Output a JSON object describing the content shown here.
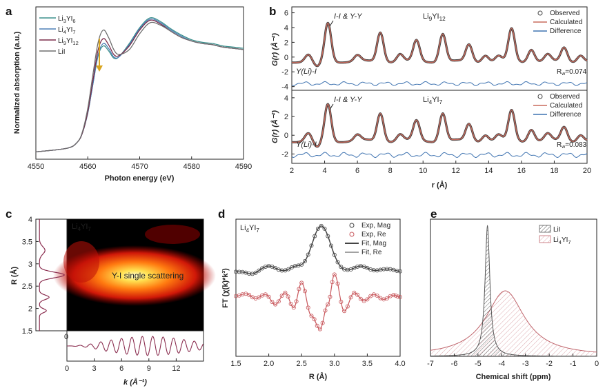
{
  "panel_letters": [
    "a",
    "b",
    "c",
    "d",
    "e"
  ],
  "chart_data": [
    {
      "panel": "a",
      "type": "line",
      "xlabel": "Photon energy (eV)",
      "ylabel": "Normalized absorption (a.u.)",
      "xlim": [
        4550,
        4590
      ],
      "xticks": [
        "4550",
        "4560",
        "4570",
        "4580",
        "4590"
      ],
      "series": [
        {
          "name": "Li3YI6",
          "label_main": "Li",
          "label_parts": [
            "3",
            "YI",
            "6"
          ],
          "color": "#3a8f8c",
          "points": [
            [
              4550,
              0.06
            ],
            [
              4556,
              0.09
            ],
            [
              4558,
              0.14
            ],
            [
              4559,
              0.22
            ],
            [
              4560,
              0.38
            ],
            [
              4561,
              0.62
            ],
            [
              4562,
              0.85
            ],
            [
              4563,
              0.93
            ],
            [
              4564,
              0.89
            ],
            [
              4565,
              0.83
            ],
            [
              4566,
              0.84
            ],
            [
              4568,
              0.95
            ],
            [
              4570,
              1.08
            ],
            [
              4572,
              1.16
            ],
            [
              4574,
              1.13
            ],
            [
              4576,
              1.07
            ],
            [
              4578,
              1.02
            ],
            [
              4580,
              0.98
            ],
            [
              4582,
              0.96
            ],
            [
              4584,
              0.95
            ],
            [
              4586,
              0.93
            ],
            [
              4588,
              0.92
            ],
            [
              4590,
              0.91
            ]
          ]
        },
        {
          "name": "Li4YI7",
          "label_main": "Li",
          "label_parts": [
            "4",
            "YI",
            "7"
          ],
          "color": "#4b7fb5",
          "points": [
            [
              4550,
              0.06
            ],
            [
              4556,
              0.09
            ],
            [
              4558,
              0.14
            ],
            [
              4559,
              0.22
            ],
            [
              4560,
              0.38
            ],
            [
              4561,
              0.62
            ],
            [
              4562,
              0.86
            ],
            [
              4563,
              0.95
            ],
            [
              4564,
              0.91
            ],
            [
              4565,
              0.84
            ],
            [
              4566,
              0.84
            ],
            [
              4568,
              0.94
            ],
            [
              4570,
              1.07
            ],
            [
              4572,
              1.15
            ],
            [
              4574,
              1.12
            ],
            [
              4576,
              1.06
            ],
            [
              4578,
              1.01
            ],
            [
              4580,
              0.97
            ],
            [
              4582,
              0.95
            ],
            [
              4584,
              0.94
            ],
            [
              4586,
              0.92
            ],
            [
              4588,
              0.91
            ],
            [
              4590,
              0.9
            ]
          ]
        },
        {
          "name": "Li9YI12",
          "label_main": "Li",
          "label_parts": [
            "9",
            "YI",
            "12"
          ],
          "color": "#7a2b49",
          "points": [
            [
              4550,
              0.06
            ],
            [
              4556,
              0.09
            ],
            [
              4558,
              0.14
            ],
            [
              4559,
              0.22
            ],
            [
              4560,
              0.39
            ],
            [
              4561,
              0.65
            ],
            [
              4562,
              0.9
            ],
            [
              4563,
              0.99
            ],
            [
              4564,
              0.94
            ],
            [
              4565,
              0.86
            ],
            [
              4566,
              0.85
            ],
            [
              4568,
              0.93
            ],
            [
              4570,
              1.06
            ],
            [
              4572,
              1.14
            ],
            [
              4574,
              1.11
            ],
            [
              4576,
              1.05
            ],
            [
              4578,
              1.0
            ],
            [
              4580,
              0.97
            ],
            [
              4582,
              0.95
            ],
            [
              4584,
              0.94
            ],
            [
              4586,
              0.92
            ],
            [
              4588,
              0.91
            ],
            [
              4590,
              0.9
            ]
          ]
        },
        {
          "name": "LiI",
          "label_main": "LiI",
          "label_parts": [],
          "color": "#6e6e6e",
          "points": [
            [
              4550,
              0.06
            ],
            [
              4556,
              0.09
            ],
            [
              4558,
              0.14
            ],
            [
              4559,
              0.23
            ],
            [
              4560,
              0.42
            ],
            [
              4561,
              0.7
            ],
            [
              4562,
              0.96
            ],
            [
              4563,
              1.06
            ],
            [
              4564,
              1.0
            ],
            [
              4565,
              0.9
            ],
            [
              4566,
              0.86
            ],
            [
              4568,
              0.9
            ],
            [
              4570,
              1.03
            ],
            [
              4572,
              1.12
            ],
            [
              4574,
              1.1
            ],
            [
              4576,
              1.05
            ],
            [
              4578,
              1.0
            ],
            [
              4580,
              0.97
            ],
            [
              4582,
              0.95
            ],
            [
              4584,
              0.94
            ],
            [
              4586,
              0.92
            ],
            [
              4588,
              0.91
            ],
            [
              4590,
              0.9
            ]
          ]
        }
      ],
      "arrow_color": "#d9a520"
    },
    {
      "panel": "b",
      "type": "line",
      "xlabel": "r (Å)",
      "xlim": [
        2,
        20
      ],
      "xticks": [
        "2",
        "4",
        "6",
        "8",
        "10",
        "12",
        "14",
        "16",
        "18",
        "20"
      ],
      "legend": [
        "Observed",
        "Calculated",
        "Difference"
      ],
      "colors": {
        "observed": "#444444",
        "calculated": "#c96a5c",
        "difference": "#3d72b0"
      },
      "peaks_r": [
        3.0,
        4.2,
        6.0,
        7.4,
        8.6,
        9.6,
        11.2,
        12.8,
        13.8,
        14.6,
        15.4,
        16.6,
        17.6,
        18.6,
        19.6
      ],
      "subplots": [
        {
          "compound_main": "Li",
          "compound_parts": [
            "9",
            "YI",
            "12"
          ],
          "rw": "R",
          "rw_sub": "w",
          "rw_value": "=0.074",
          "ylabel": "G(r) (Å⁻²)",
          "yticks": [
            "-4",
            "-2",
            "0",
            "2",
            "4",
            "6"
          ],
          "ylim": [
            -4.5,
            6.8
          ],
          "annotation_peak": "I-I & Y-Y",
          "annotation_low": "Y(Li)-I",
          "peaks_g": [
            0.9,
            5.2,
            0.8,
            4.0,
            1.0,
            2.8,
            3.8,
            2.3,
            0.9,
            0.7,
            4.4,
            1.7,
            0.9,
            1.9,
            0.9
          ]
        },
        {
          "compound_main": "Li",
          "compound_parts": [
            "4",
            "YI",
            "7"
          ],
          "rw": "R",
          "rw_sub": "w",
          "rw_value": "=0.083",
          "ylabel": "G(r) (Å⁻²)",
          "yticks": [
            "-2",
            "0",
            "2",
            "4"
          ],
          "ylim": [
            -3.0,
            4.8
          ],
          "annotation_peak": "I-I & Y-Y",
          "annotation_low": "Y(Li)-I",
          "peaks_g": [
            0.8,
            3.9,
            0.6,
            3.0,
            0.7,
            2.1,
            3.0,
            1.8,
            0.7,
            0.6,
            3.2,
            1.3,
            0.7,
            1.5,
            0.7
          ]
        }
      ]
    },
    {
      "panel": "c",
      "type": "heatmap",
      "title_main": "Li",
      "title_parts": [
        "4",
        "YI",
        "7"
      ],
      "annotation": "Y-I single scattering",
      "ylabel": "R (Å)",
      "yticks": [
        "1.5",
        "2",
        "2.5",
        "3",
        "3.5",
        "4"
      ],
      "ylim": [
        1.5,
        4
      ],
      "xlabel": "k (Å⁻¹)",
      "xticks": [
        "0",
        "3",
        "6",
        "9",
        "12"
      ],
      "xlim": [
        0,
        15
      ],
      "hotspot": {
        "k": 8.5,
        "R": 2.75
      },
      "side_profile_xticks": [
        "0"
      ],
      "curve_color": "#8a2d4f"
    },
    {
      "panel": "d",
      "type": "line",
      "title_main": "Li",
      "title_parts": [
        "4",
        "YI",
        "7"
      ],
      "xlabel": "R (Å)",
      "ylabel": "FT (χ(k)*k³)",
      "xlim": [
        1.5,
        4.0
      ],
      "xticks": [
        "1.5",
        "2.0",
        "2.5",
        "3.0",
        "3.5",
        "4.0"
      ],
      "legend": [
        "Exp, Mag",
        "Exp, Re",
        "Fit, Mag",
        "Fit, Re"
      ],
      "colors": {
        "mag": "#444444",
        "re": "#c8575c"
      },
      "mag_peak_R": 2.8,
      "re_extrema": [
        [
          1.5,
          0.05
        ],
        [
          1.65,
          0.12
        ],
        [
          1.8,
          -0.02
        ],
        [
          1.95,
          0.1
        ],
        [
          2.1,
          -0.2
        ],
        [
          2.25,
          0.15
        ],
        [
          2.38,
          -0.3
        ],
        [
          2.5,
          0.45
        ],
        [
          2.65,
          -0.55
        ],
        [
          2.78,
          -0.95
        ],
        [
          2.9,
          -0.2
        ],
        [
          3.0,
          0.7
        ],
        [
          3.15,
          -0.4
        ],
        [
          3.3,
          0.15
        ],
        [
          3.45,
          -0.1
        ],
        [
          3.6,
          0.1
        ],
        [
          3.75,
          -0.05
        ],
        [
          3.9,
          0.08
        ],
        [
          4.0,
          0.02
        ]
      ]
    },
    {
      "panel": "e",
      "type": "area",
      "xlabel": "Chemical shift (ppm)",
      "xlim": [
        -7,
        0
      ],
      "xticks": [
        "-7",
        "-6",
        "-5",
        "-4",
        "-3",
        "-2",
        "-1",
        "0"
      ],
      "series": [
        {
          "name": "LiI",
          "label_main": "LiI",
          "label_parts": [],
          "center": -4.6,
          "width": 0.12,
          "height": 1.0,
          "color": "#555555"
        },
        {
          "name": "Li4YI7",
          "label_main": "Li",
          "label_parts": [
            "4",
            "YI",
            "7"
          ],
          "center": -3.85,
          "width": 1.0,
          "height": 0.5,
          "color": "#c0656c"
        }
      ]
    }
  ]
}
